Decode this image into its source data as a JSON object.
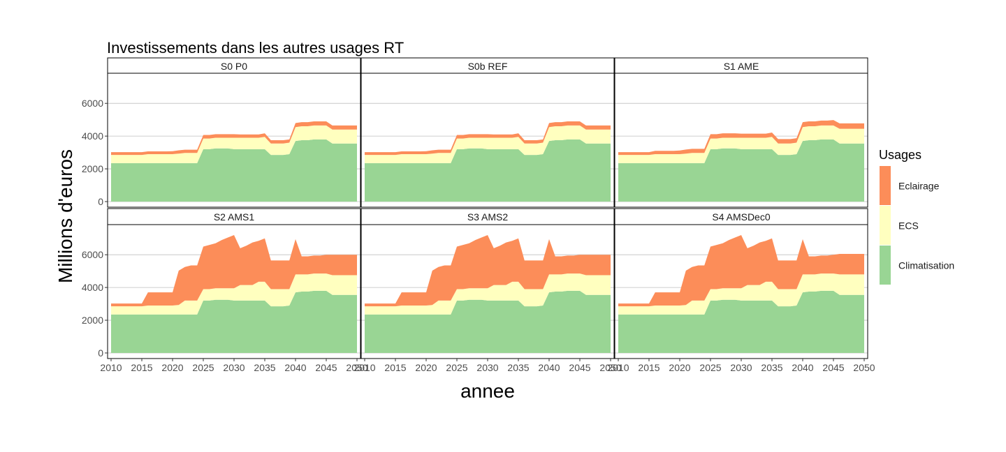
{
  "chart_data": {
    "type": "area",
    "title": "Investissements dans les autres usages RT",
    "xlabel": "annee",
    "ylabel": "Millions d'euros",
    "xlim": [
      2010,
      2050
    ],
    "ylim": [
      0,
      7500
    ],
    "x_ticks": [
      2010,
      2015,
      2020,
      2025,
      2030,
      2035,
      2040,
      2045,
      2050
    ],
    "y_ticks": [
      0,
      2000,
      4000,
      6000
    ],
    "grid": "horizontal-major",
    "stacked": true,
    "legend": {
      "title": "Usages",
      "position": "right",
      "entries": [
        "Eclairage",
        "ECS",
        "Climatisation"
      ]
    },
    "colors": {
      "Eclairage": "#fc8d59",
      "ECS": "#ffffbf",
      "Climatisation": "#99d594",
      "grid": "#bfbfbf",
      "border": "#000000"
    },
    "x": [
      2010,
      2011,
      2012,
      2013,
      2014,
      2015,
      2016,
      2017,
      2018,
      2019,
      2020,
      2021,
      2022,
      2023,
      2024,
      2025,
      2026,
      2027,
      2028,
      2029,
      2030,
      2031,
      2032,
      2033,
      2034,
      2035,
      2036,
      2037,
      2038,
      2039,
      2040,
      2041,
      2042,
      2043,
      2044,
      2045,
      2046,
      2047,
      2048,
      2049,
      2050
    ],
    "panels": [
      {
        "label": "S0 P0",
        "series": [
          {
            "name": "Climatisation",
            "values": [
              2350,
              2350,
              2350,
              2350,
              2350,
              2350,
              2350,
              2350,
              2350,
              2350,
              2350,
              2350,
              2350,
              2350,
              2350,
              3200,
              3200,
              3250,
              3250,
              3250,
              3200,
              3200,
              3200,
              3200,
              3200,
              3200,
              2850,
              2850,
              2850,
              2900,
              3700,
              3750,
              3750,
              3800,
              3800,
              3800,
              3550,
              3550,
              3550,
              3550,
              3550
            ]
          },
          {
            "name": "ECS",
            "values": [
              500,
              500,
              500,
              500,
              500,
              500,
              550,
              550,
              550,
              550,
              550,
              580,
              620,
              620,
              620,
              650,
              650,
              650,
              650,
              650,
              700,
              700,
              700,
              700,
              700,
              750,
              700,
              700,
              700,
              700,
              850,
              850,
              850,
              850,
              850,
              850,
              850,
              850,
              850,
              850,
              850
            ]
          },
          {
            "name": "Eclairage",
            "values": [
              170,
              170,
              170,
              170,
              170,
              170,
              170,
              170,
              170,
              170,
              180,
              200,
              200,
              200,
              200,
              220,
              220,
              220,
              220,
              220,
              220,
              200,
              200,
              200,
              200,
              220,
              200,
              200,
              200,
              200,
              250,
              250,
              250,
              250,
              250,
              250,
              250,
              250,
              250,
              250,
              250
            ]
          }
        ]
      },
      {
        "label": "S0b REF",
        "series": [
          {
            "name": "Climatisation",
            "values": [
              2350,
              2350,
              2350,
              2350,
              2350,
              2350,
              2350,
              2350,
              2350,
              2350,
              2350,
              2350,
              2350,
              2350,
              2350,
              3200,
              3200,
              3250,
              3250,
              3250,
              3200,
              3200,
              3200,
              3200,
              3200,
              3200,
              2850,
              2850,
              2850,
              2900,
              3700,
              3750,
              3750,
              3800,
              3800,
              3800,
              3550,
              3550,
              3550,
              3550,
              3550
            ]
          },
          {
            "name": "ECS",
            "values": [
              500,
              500,
              500,
              500,
              500,
              500,
              550,
              550,
              550,
              550,
              550,
              580,
              620,
              620,
              620,
              650,
              650,
              650,
              650,
              650,
              700,
              700,
              700,
              700,
              700,
              750,
              700,
              700,
              700,
              700,
              850,
              850,
              850,
              850,
              850,
              850,
              850,
              850,
              850,
              850,
              850
            ]
          },
          {
            "name": "Eclairage",
            "values": [
              170,
              170,
              170,
              170,
              170,
              170,
              170,
              170,
              170,
              170,
              180,
              200,
              200,
              200,
              200,
              220,
              220,
              220,
              220,
              220,
              220,
              200,
              200,
              200,
              200,
              220,
              200,
              200,
              200,
              200,
              250,
              250,
              250,
              250,
              250,
              250,
              250,
              250,
              250,
              250,
              250
            ]
          }
        ]
      },
      {
        "label": "S1 AME",
        "series": [
          {
            "name": "Climatisation",
            "values": [
              2350,
              2350,
              2350,
              2350,
              2350,
              2350,
              2350,
              2350,
              2350,
              2350,
              2350,
              2350,
              2350,
              2350,
              2350,
              3200,
              3200,
              3250,
              3250,
              3250,
              3200,
              3200,
              3200,
              3200,
              3200,
              3200,
              2850,
              2850,
              2850,
              2900,
              3700,
              3750,
              3750,
              3800,
              3800,
              3800,
              3550,
              3550,
              3550,
              3550,
              3550
            ]
          },
          {
            "name": "ECS",
            "values": [
              500,
              500,
              500,
              500,
              500,
              500,
              550,
              550,
              550,
              550,
              550,
              580,
              620,
              620,
              620,
              650,
              650,
              650,
              650,
              650,
              700,
              700,
              700,
              700,
              700,
              750,
              700,
              700,
              700,
              700,
              850,
              850,
              850,
              850,
              850,
              850,
              900,
              900,
              900,
              900,
              900
            ]
          },
          {
            "name": "Eclairage",
            "values": [
              170,
              170,
              170,
              170,
              170,
              170,
              200,
              200,
              200,
              200,
              220,
              250,
              250,
              250,
              250,
              270,
              270,
              270,
              270,
              270,
              250,
              250,
              250,
              250,
              250,
              270,
              270,
              270,
              270,
              270,
              300,
              300,
              300,
              300,
              300,
              330,
              330,
              330,
              330,
              330,
              330
            ]
          }
        ]
      },
      {
        "label": "S2 AMS1",
        "series": [
          {
            "name": "Climatisation",
            "values": [
              2350,
              2350,
              2350,
              2350,
              2350,
              2350,
              2350,
              2350,
              2350,
              2350,
              2350,
              2350,
              2350,
              2350,
              2350,
              3200,
              3200,
              3250,
              3250,
              3250,
              3200,
              3200,
              3200,
              3200,
              3200,
              3200,
              2850,
              2850,
              2850,
              2900,
              3700,
              3750,
              3750,
              3800,
              3800,
              3800,
              3550,
              3550,
              3550,
              3550,
              3550
            ]
          },
          {
            "name": "ECS",
            "values": [
              500,
              500,
              500,
              500,
              500,
              500,
              550,
              550,
              550,
              550,
              550,
              580,
              850,
              850,
              850,
              700,
              700,
              700,
              700,
              700,
              750,
              950,
              950,
              950,
              1150,
              1150,
              1050,
              1050,
              1050,
              1000,
              1100,
              1050,
              1050,
              1050,
              1050,
              1050,
              1200,
              1200,
              1200,
              1200,
              1200
            ]
          },
          {
            "name": "Eclairage",
            "values": [
              170,
              170,
              170,
              170,
              170,
              170,
              800,
              800,
              800,
              800,
              800,
              2100,
              2050,
              2150,
              2150,
              2600,
              2700,
              2750,
              2950,
              3100,
              3250,
              2250,
              2400,
              2600,
              2500,
              2650,
              1750,
              1750,
              1750,
              1750,
              2150,
              1100,
              1100,
              1100,
              1100,
              1150,
              1250,
              1250,
              1250,
              1250,
              1250
            ]
          }
        ]
      },
      {
        "label": "S3 AMS2",
        "series": [
          {
            "name": "Climatisation",
            "values": [
              2350,
              2350,
              2350,
              2350,
              2350,
              2350,
              2350,
              2350,
              2350,
              2350,
              2350,
              2350,
              2350,
              2350,
              2350,
              3200,
              3200,
              3250,
              3250,
              3250,
              3200,
              3200,
              3200,
              3200,
              3200,
              3200,
              2850,
              2850,
              2850,
              2900,
              3700,
              3750,
              3750,
              3800,
              3800,
              3800,
              3550,
              3550,
              3550,
              3550,
              3550
            ]
          },
          {
            "name": "ECS",
            "values": [
              500,
              500,
              500,
              500,
              500,
              500,
              550,
              550,
              550,
              550,
              550,
              580,
              850,
              850,
              850,
              700,
              700,
              700,
              700,
              700,
              750,
              950,
              950,
              950,
              1150,
              1150,
              1050,
              1050,
              1050,
              1000,
              1100,
              1050,
              1050,
              1050,
              1050,
              1050,
              1200,
              1200,
              1200,
              1200,
              1200
            ]
          },
          {
            "name": "Eclairage",
            "values": [
              170,
              170,
              170,
              170,
              170,
              170,
              800,
              800,
              800,
              800,
              800,
              2100,
              2050,
              2150,
              2150,
              2600,
              2700,
              2750,
              2950,
              3100,
              3250,
              2250,
              2400,
              2600,
              2500,
              2650,
              1750,
              1750,
              1750,
              1750,
              2150,
              1100,
              1100,
              1100,
              1100,
              1150,
              1250,
              1250,
              1250,
              1250,
              1250
            ]
          }
        ]
      },
      {
        "label": "S4 AMSDec0",
        "series": [
          {
            "name": "Climatisation",
            "values": [
              2350,
              2350,
              2350,
              2350,
              2350,
              2350,
              2350,
              2350,
              2350,
              2350,
              2350,
              2350,
              2350,
              2350,
              2350,
              3200,
              3200,
              3250,
              3250,
              3250,
              3200,
              3200,
              3200,
              3200,
              3200,
              3200,
              2850,
              2850,
              2850,
              2900,
              3700,
              3750,
              3750,
              3800,
              3800,
              3800,
              3550,
              3550,
              3550,
              3550,
              3550
            ]
          },
          {
            "name": "ECS",
            "values": [
              500,
              500,
              500,
              500,
              500,
              500,
              550,
              550,
              550,
              550,
              550,
              580,
              850,
              850,
              850,
              700,
              700,
              700,
              700,
              700,
              750,
              950,
              950,
              950,
              1150,
              1150,
              1050,
              1050,
              1050,
              1000,
              1100,
              1050,
              1050,
              1050,
              1050,
              1050,
              1250,
              1250,
              1250,
              1250,
              1250
            ]
          },
          {
            "name": "Eclairage",
            "values": [
              170,
              170,
              170,
              170,
              170,
              170,
              800,
              800,
              800,
              800,
              800,
              2100,
              2050,
              2150,
              2150,
              2600,
              2700,
              2750,
              2950,
              3100,
              3250,
              2250,
              2400,
              2600,
              2500,
              2650,
              1750,
              1750,
              1750,
              1750,
              2150,
              1100,
              1100,
              1100,
              1100,
              1150,
              1250,
              1250,
              1250,
              1250,
              1250
            ]
          }
        ]
      }
    ]
  }
}
